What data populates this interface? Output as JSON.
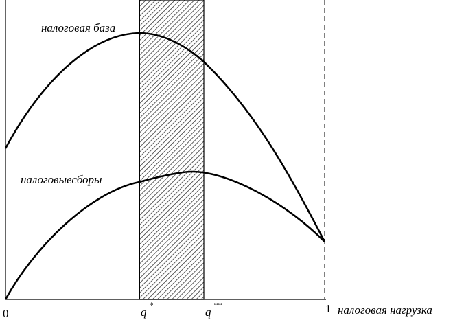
{
  "curves": [
    {
      "label": "налоговая база"
    },
    {
      "label": "налоговыесборы"
    }
  ],
  "x_axis": {
    "origin": "0",
    "end": "1",
    "label": "налоговая нагрузка",
    "markers": [
      {
        "symbol": "q",
        "superscript": "*"
      },
      {
        "symbol": "q",
        "superscript": "**"
      }
    ]
  }
}
